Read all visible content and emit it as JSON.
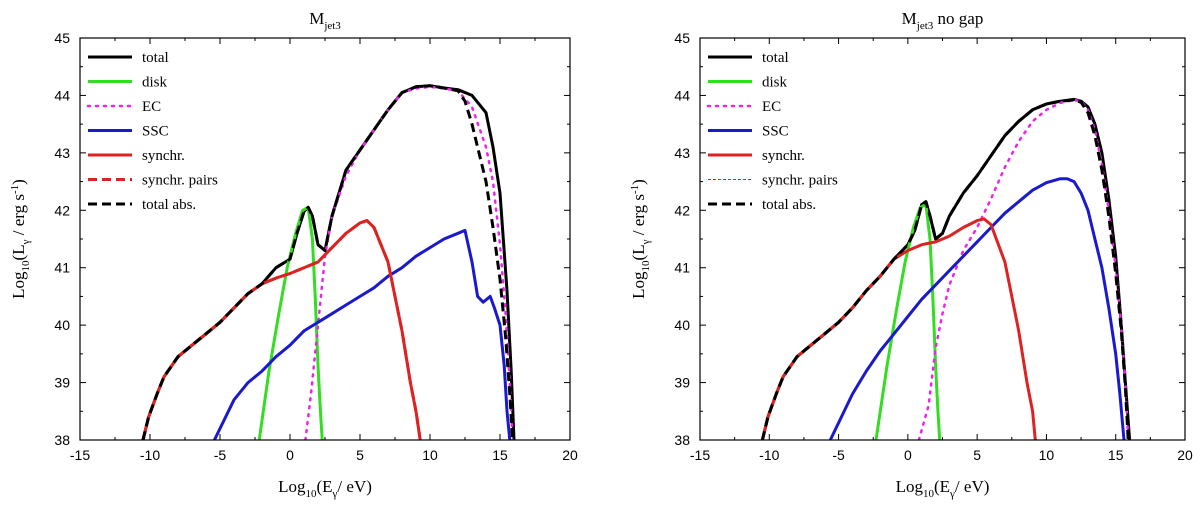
{
  "chart_data": [
    {
      "type": "line",
      "title": "M",
      "title_sub": "jet3",
      "title_suffix": "",
      "xlabel": {
        "pre": "Log",
        "pre_sub": "10",
        "mid": "(E",
        "mid_sub": "γ",
        "post": "/ eV)"
      },
      "ylabel": {
        "pre": "Log",
        "pre_sub": "10",
        "mid": "(L",
        "mid_sub": "γ",
        "post": " / erg s",
        "post_sup": "-1",
        "end": ")"
      },
      "xlim": [
        -15,
        20
      ],
      "ylim": [
        38,
        45
      ],
      "xticks": [
        "-15",
        "-10",
        "-5",
        "0",
        "5",
        "10",
        "15",
        "20"
      ],
      "yticks": [
        "38",
        "39",
        "40",
        "41",
        "42",
        "43",
        "44",
        "45"
      ],
      "legend_position": "top-left",
      "series": [
        {
          "name": "total",
          "color": "#000000",
          "dash": "solid",
          "x": [
            -10.5,
            -10.1,
            -9.5,
            -9,
            -8,
            -7,
            -6,
            -5,
            -4,
            -3,
            -2,
            -1,
            0,
            0.5,
            1,
            1.3,
            1.6,
            2,
            2.5,
            3,
            4,
            5,
            6,
            7,
            8,
            9,
            10,
            11,
            12,
            13,
            14,
            14.5,
            15,
            15.5,
            15.8,
            16
          ],
          "y": [
            38,
            38.4,
            38.8,
            39.1,
            39.45,
            39.65,
            39.85,
            40.05,
            40.3,
            40.55,
            40.72,
            41.0,
            41.15,
            41.6,
            41.98,
            42.05,
            41.9,
            41.4,
            41.3,
            41.9,
            42.7,
            43.05,
            43.4,
            43.75,
            44.05,
            44.15,
            44.17,
            44.13,
            44.1,
            44.0,
            43.7,
            43.1,
            42.3,
            40.6,
            39.2,
            38
          ]
        },
        {
          "name": "disk",
          "color": "#33dd22",
          "dash": "solid",
          "x": [
            -2.2,
            -1.5,
            -0.8,
            -0.2,
            0.4,
            0.9,
            1.3,
            1.6,
            1.8,
            2.0,
            2.15,
            2.3
          ],
          "y": [
            38,
            39.2,
            40.2,
            41.0,
            41.6,
            42.0,
            42.05,
            41.5,
            40.5,
            39.3,
            38.6,
            38
          ]
        },
        {
          "name": "EC",
          "color": "#ee22ee",
          "dash": "dot",
          "x": [
            1.1,
            1.5,
            2,
            2.5,
            3,
            4,
            5,
            6,
            7,
            8,
            9,
            10,
            11,
            12,
            13,
            14,
            14.5,
            15,
            15.4,
            15.7,
            15.9
          ],
          "y": [
            38,
            38.8,
            40.0,
            41.2,
            41.9,
            42.6,
            43.05,
            43.4,
            43.75,
            44.05,
            44.12,
            44.15,
            44.12,
            44.08,
            43.8,
            43.1,
            42.5,
            41.4,
            40.2,
            39.0,
            38
          ]
        },
        {
          "name": "SSC",
          "color": "#1a1acc",
          "dash": "solid",
          "x": [
            -5.4,
            -4,
            -3,
            -2,
            -1,
            0,
            1,
            2,
            3,
            4,
            5,
            6,
            7,
            8,
            9,
            10,
            11,
            12,
            12.5,
            13,
            13.4,
            13.8,
            14.3,
            14.6,
            15,
            15.3,
            15.5,
            15.7
          ],
          "y": [
            38,
            38.7,
            39.0,
            39.2,
            39.45,
            39.65,
            39.9,
            40.05,
            40.2,
            40.35,
            40.5,
            40.65,
            40.85,
            41.0,
            41.2,
            41.35,
            41.5,
            41.6,
            41.65,
            41.1,
            40.5,
            40.4,
            40.5,
            40.3,
            40.0,
            39.3,
            38.5,
            38
          ]
        },
        {
          "name": "synchr.",
          "color": "#dd2222",
          "dash": "solid",
          "x": [
            -10.5,
            -10.1,
            -9.5,
            -9,
            -8,
            -7,
            -6,
            -5,
            -4,
            -3,
            -2,
            -1,
            0,
            1,
            2,
            3,
            4,
            5,
            5.5,
            6,
            7,
            8,
            8.6,
            9,
            9.3
          ],
          "y": [
            38,
            38.4,
            38.8,
            39.1,
            39.45,
            39.65,
            39.85,
            40.05,
            40.3,
            40.55,
            40.72,
            40.82,
            40.9,
            41.0,
            41.1,
            41.35,
            41.6,
            41.78,
            41.82,
            41.7,
            41.1,
            39.9,
            39.0,
            38.5,
            38
          ]
        },
        {
          "name": "synchr. pairs",
          "color": "#dd2222",
          "dash": "dash",
          "x": [
            -10.5,
            -10.1,
            -9.5,
            -9,
            -8,
            -7,
            -6,
            -5,
            -4,
            -3,
            -2,
            -1,
            0,
            1,
            2,
            3,
            4,
            5,
            5.5,
            6,
            7,
            8,
            8.6,
            9,
            9.3
          ],
          "y": [
            38,
            38.4,
            38.8,
            39.1,
            39.45,
            39.65,
            39.85,
            40.05,
            40.3,
            40.55,
            40.72,
            40.82,
            40.9,
            41.0,
            41.1,
            41.35,
            41.6,
            41.78,
            41.82,
            41.7,
            41.1,
            39.9,
            39.0,
            38.5,
            38
          ]
        },
        {
          "name": "total abs.",
          "color": "#000000",
          "dash": "dash",
          "x": [
            -10.5,
            -10.1,
            -9.5,
            -9,
            -8,
            -7,
            -6,
            -5,
            -4,
            -3,
            -2,
            -1,
            0,
            0.5,
            1,
            1.3,
            1.6,
            2,
            2.5,
            3,
            4,
            5,
            6,
            7,
            8,
            9,
            10,
            11,
            12,
            12.5,
            13,
            13.5,
            14,
            14.5,
            15,
            15.4,
            15.7,
            15.9
          ],
          "y": [
            38,
            38.4,
            38.8,
            39.1,
            39.45,
            39.65,
            39.85,
            40.05,
            40.3,
            40.55,
            40.72,
            41.0,
            41.15,
            41.6,
            41.98,
            42.05,
            41.9,
            41.4,
            41.3,
            41.9,
            42.7,
            43.05,
            43.4,
            43.75,
            44.05,
            44.15,
            44.17,
            44.13,
            44.08,
            43.9,
            43.5,
            43.0,
            42.5,
            41.7,
            40.8,
            39.8,
            38.8,
            38
          ]
        }
      ]
    },
    {
      "type": "line",
      "title": "M",
      "title_sub": "jet3",
      "title_suffix": " no gap",
      "xlabel": {
        "pre": "Log",
        "pre_sub": "10",
        "mid": "(E",
        "mid_sub": "γ",
        "post": "/ eV)"
      },
      "ylabel": {
        "pre": "Log",
        "pre_sub": "10",
        "mid": "(L",
        "mid_sub": "γ",
        "post": " / erg s",
        "post_sup": "-1",
        "end": ")"
      },
      "xlim": [
        -15,
        20
      ],
      "ylim": [
        38,
        45
      ],
      "xticks": [
        "-15",
        "-10",
        "-5",
        "0",
        "5",
        "10",
        "15",
        "20"
      ],
      "yticks": [
        "38",
        "39",
        "40",
        "41",
        "42",
        "43",
        "44",
        "45"
      ],
      "legend_position": "top-left",
      "series": [
        {
          "name": "total",
          "color": "#000000",
          "dash": "solid",
          "x": [
            -10.5,
            -10.1,
            -9.5,
            -9,
            -8,
            -7,
            -6,
            -5,
            -4,
            -3,
            -2,
            -1,
            0,
            0.5,
            1,
            1.3,
            1.6,
            2,
            2.5,
            3,
            4,
            5,
            6,
            7,
            8,
            9,
            10,
            11,
            12,
            12.5,
            13,
            13.5,
            14,
            14.5,
            15,
            15.4,
            15.7,
            16
          ],
          "y": [
            38,
            38.4,
            38.8,
            39.1,
            39.45,
            39.65,
            39.85,
            40.05,
            40.3,
            40.6,
            40.85,
            41.15,
            41.4,
            41.65,
            42.1,
            42.15,
            41.9,
            41.5,
            41.6,
            41.9,
            42.3,
            42.6,
            42.95,
            43.3,
            43.55,
            43.75,
            43.85,
            43.9,
            43.93,
            43.9,
            43.8,
            43.5,
            43.0,
            42.2,
            41.2,
            40.0,
            39.0,
            38
          ]
        },
        {
          "name": "disk",
          "color": "#33dd22",
          "dash": "solid",
          "x": [
            -2.3,
            -1.5,
            -0.8,
            -0.2,
            0.4,
            0.9,
            1.3,
            1.6,
            1.8,
            2.0,
            2.15,
            2.3
          ],
          "y": [
            38,
            39.3,
            40.3,
            41.1,
            41.7,
            42.05,
            42.1,
            41.5,
            40.5,
            39.3,
            38.6,
            38
          ]
        },
        {
          "name": "EC",
          "color": "#ee22ee",
          "dash": "dot",
          "x": [
            0.8,
            1.5,
            2,
            2.5,
            3,
            4,
            5,
            6,
            7,
            8,
            9,
            10,
            11,
            12,
            12.5,
            13,
            13.5,
            14,
            14.5,
            15,
            15.4,
            15.7,
            15.9
          ],
          "y": [
            38,
            38.6,
            39.6,
            40.2,
            40.7,
            41.3,
            41.7,
            42.2,
            42.75,
            43.2,
            43.55,
            43.75,
            43.87,
            43.92,
            43.9,
            43.75,
            43.4,
            42.8,
            42.0,
            41.0,
            40.0,
            39.0,
            38
          ]
        },
        {
          "name": "SSC",
          "color": "#1a1acc",
          "dash": "solid",
          "x": [
            -5.6,
            -4,
            -3,
            -2,
            -1,
            0,
            1,
            2,
            3,
            4,
            5,
            6,
            7,
            8,
            9,
            10,
            11,
            11.5,
            12,
            12.5,
            13,
            13.5,
            14,
            14.5,
            15,
            15.3,
            15.6
          ],
          "y": [
            38,
            38.8,
            39.2,
            39.55,
            39.85,
            40.15,
            40.45,
            40.7,
            40.95,
            41.2,
            41.45,
            41.7,
            41.95,
            42.15,
            42.35,
            42.48,
            42.55,
            42.55,
            42.5,
            42.3,
            42.0,
            41.5,
            41.0,
            40.3,
            39.5,
            38.8,
            38
          ]
        },
        {
          "name": "synchr.",
          "color": "#dd2222",
          "dash": "solid",
          "x": [
            -10.5,
            -10.1,
            -9.5,
            -9,
            -8,
            -7,
            -6,
            -5,
            -4,
            -3,
            -2,
            -1,
            0,
            1,
            2,
            3,
            4,
            5,
            5.5,
            6,
            7,
            8,
            8.6,
            9,
            9.2
          ],
          "y": [
            38,
            38.4,
            38.8,
            39.1,
            39.45,
            39.65,
            39.85,
            40.05,
            40.3,
            40.6,
            40.85,
            41.15,
            41.3,
            41.4,
            41.45,
            41.55,
            41.7,
            41.82,
            41.85,
            41.75,
            41.1,
            39.9,
            39.0,
            38.5,
            38
          ]
        },
        {
          "name": "synchr. pairs",
          "color": "#dd2222",
          "dash": "thin",
          "x": [
            -10.5,
            -10.1,
            -9.5,
            -9,
            -8,
            -7,
            -6,
            -5,
            -4,
            -3,
            -2,
            -1,
            0,
            1,
            2,
            3,
            4,
            5,
            5.5,
            6,
            7,
            8,
            8.6,
            9,
            9.2
          ],
          "y": [
            38,
            38.4,
            38.8,
            39.1,
            39.45,
            39.65,
            39.85,
            40.05,
            40.3,
            40.6,
            40.85,
            41.15,
            41.3,
            41.4,
            41.45,
            41.55,
            41.7,
            41.82,
            41.85,
            41.75,
            41.1,
            39.9,
            39.0,
            38.5,
            38
          ]
        },
        {
          "name": "total abs.",
          "color": "#000000",
          "dash": "dash",
          "x": [
            -10.5,
            -10.1,
            -9.5,
            -9,
            -8,
            -7,
            -6,
            -5,
            -4,
            -3,
            -2,
            -1,
            0,
            0.5,
            1,
            1.3,
            1.6,
            2,
            2.5,
            3,
            4,
            5,
            6,
            7,
            8,
            9,
            10,
            11,
            12,
            12.5,
            13,
            13.5,
            14,
            14.5,
            15,
            15.4,
            15.7,
            15.9
          ],
          "y": [
            38,
            38.4,
            38.8,
            39.1,
            39.45,
            39.65,
            39.85,
            40.05,
            40.3,
            40.6,
            40.85,
            41.15,
            41.4,
            41.65,
            42.1,
            42.15,
            41.9,
            41.5,
            41.6,
            41.9,
            42.3,
            42.6,
            42.95,
            43.3,
            43.55,
            43.75,
            43.85,
            43.9,
            43.92,
            43.88,
            43.7,
            43.3,
            42.7,
            41.9,
            40.9,
            39.9,
            38.9,
            38
          ]
        }
      ]
    }
  ]
}
